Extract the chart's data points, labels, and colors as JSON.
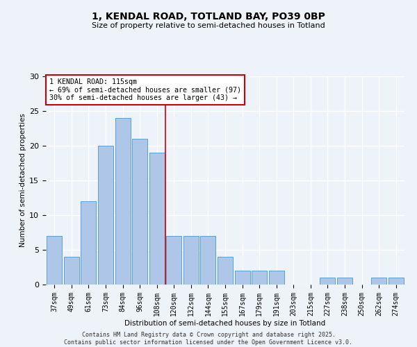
{
  "title_line1": "1, KENDAL ROAD, TOTLAND BAY, PO39 0BP",
  "title_line2": "Size of property relative to semi-detached houses in Totland",
  "xlabel": "Distribution of semi-detached houses by size in Totland",
  "ylabel": "Number of semi-detached properties",
  "bar_labels": [
    "37sqm",
    "49sqm",
    "61sqm",
    "73sqm",
    "84sqm",
    "96sqm",
    "108sqm",
    "120sqm",
    "132sqm",
    "144sqm",
    "155sqm",
    "167sqm",
    "179sqm",
    "191sqm",
    "203sqm",
    "215sqm",
    "227sqm",
    "238sqm",
    "250sqm",
    "262sqm",
    "274sqm"
  ],
  "bar_values": [
    7,
    4,
    12,
    20,
    24,
    21,
    19,
    7,
    7,
    7,
    4,
    2,
    2,
    2,
    0,
    0,
    1,
    1,
    0,
    1,
    1
  ],
  "bar_color": "#aec6e8",
  "bar_edge_color": "#5a9fd4",
  "background_color": "#eef2f9",
  "grid_color": "#ffffff",
  "ylim": [
    0,
    30
  ],
  "yticks": [
    0,
    5,
    10,
    15,
    20,
    25,
    30
  ],
  "ref_line_color": "#cc0000",
  "annotation_title": "1 KENDAL ROAD: 115sqm",
  "annotation_line1": "← 69% of semi-detached houses are smaller (97)",
  "annotation_line2": "30% of semi-detached houses are larger (43) →",
  "annotation_box_color": "#ffffff",
  "annotation_box_edge_color": "#cc0000",
  "footer_line1": "Contains HM Land Registry data © Crown copyright and database right 2025.",
  "footer_line2": "Contains public sector information licensed under the Open Government Licence v3.0."
}
